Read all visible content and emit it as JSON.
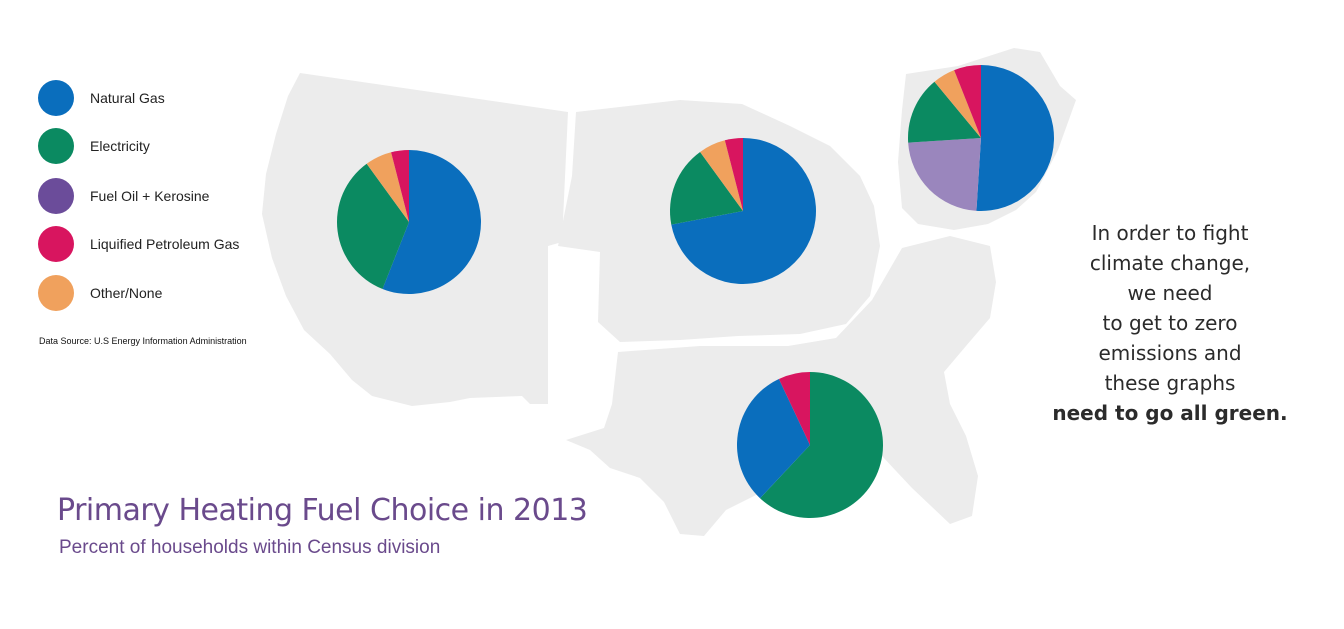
{
  "title": "Primary Heating Fuel Choice in 2013",
  "subtitle": "Percent of households within Census division",
  "source": "Data Source: U.S Energy Information Administration",
  "message_lines": [
    "In order to fight",
    "climate change,",
    "we need",
    "to get to zero",
    "emissions and",
    "these graphs",
    "need to go all green."
  ],
  "legend": [
    {
      "label": "Natural Gas",
      "color": "#0a6ebd"
    },
    {
      "label": "Electricity",
      "color": "#0b8a61"
    },
    {
      "label": "Fuel Oil + Kerosine",
      "color": "#6b4c9a"
    },
    {
      "label": "Liquified Petroleum Gas",
      "color": "#d8155f"
    },
    {
      "label": "Other/None",
      "color": "#f0a15d"
    }
  ],
  "colors": {
    "map": "#ececec",
    "natural_gas": "#0a6ebd",
    "electricity": "#0b8a61",
    "fuel_oil_pie": "#9a86bd",
    "lpg": "#d8155f",
    "other": "#f0a15d"
  },
  "chart_data": [
    {
      "type": "pie",
      "region": "West",
      "slices": [
        {
          "category": "Natural Gas",
          "value": 56
        },
        {
          "category": "Electricity",
          "value": 34
        },
        {
          "category": "Other/None",
          "value": 6
        },
        {
          "category": "Liquified Petroleum Gas",
          "value": 4
        }
      ]
    },
    {
      "type": "pie",
      "region": "Midwest",
      "slices": [
        {
          "category": "Natural Gas",
          "value": 72
        },
        {
          "category": "Electricity",
          "value": 18
        },
        {
          "category": "Other/None",
          "value": 6
        },
        {
          "category": "Liquified Petroleum Gas",
          "value": 4
        }
      ]
    },
    {
      "type": "pie",
      "region": "Northeast",
      "slices": [
        {
          "category": "Natural Gas",
          "value": 51
        },
        {
          "category": "Fuel Oil + Kerosine",
          "value": 23
        },
        {
          "category": "Electricity",
          "value": 15
        },
        {
          "category": "Other/None",
          "value": 5
        },
        {
          "category": "Liquified Petroleum Gas",
          "value": 6
        }
      ]
    },
    {
      "type": "pie",
      "region": "South",
      "slices": [
        {
          "category": "Electricity",
          "value": 62
        },
        {
          "category": "Natural Gas",
          "value": 31
        },
        {
          "category": "Liquified Petroleum Gas",
          "value": 7
        }
      ]
    }
  ]
}
